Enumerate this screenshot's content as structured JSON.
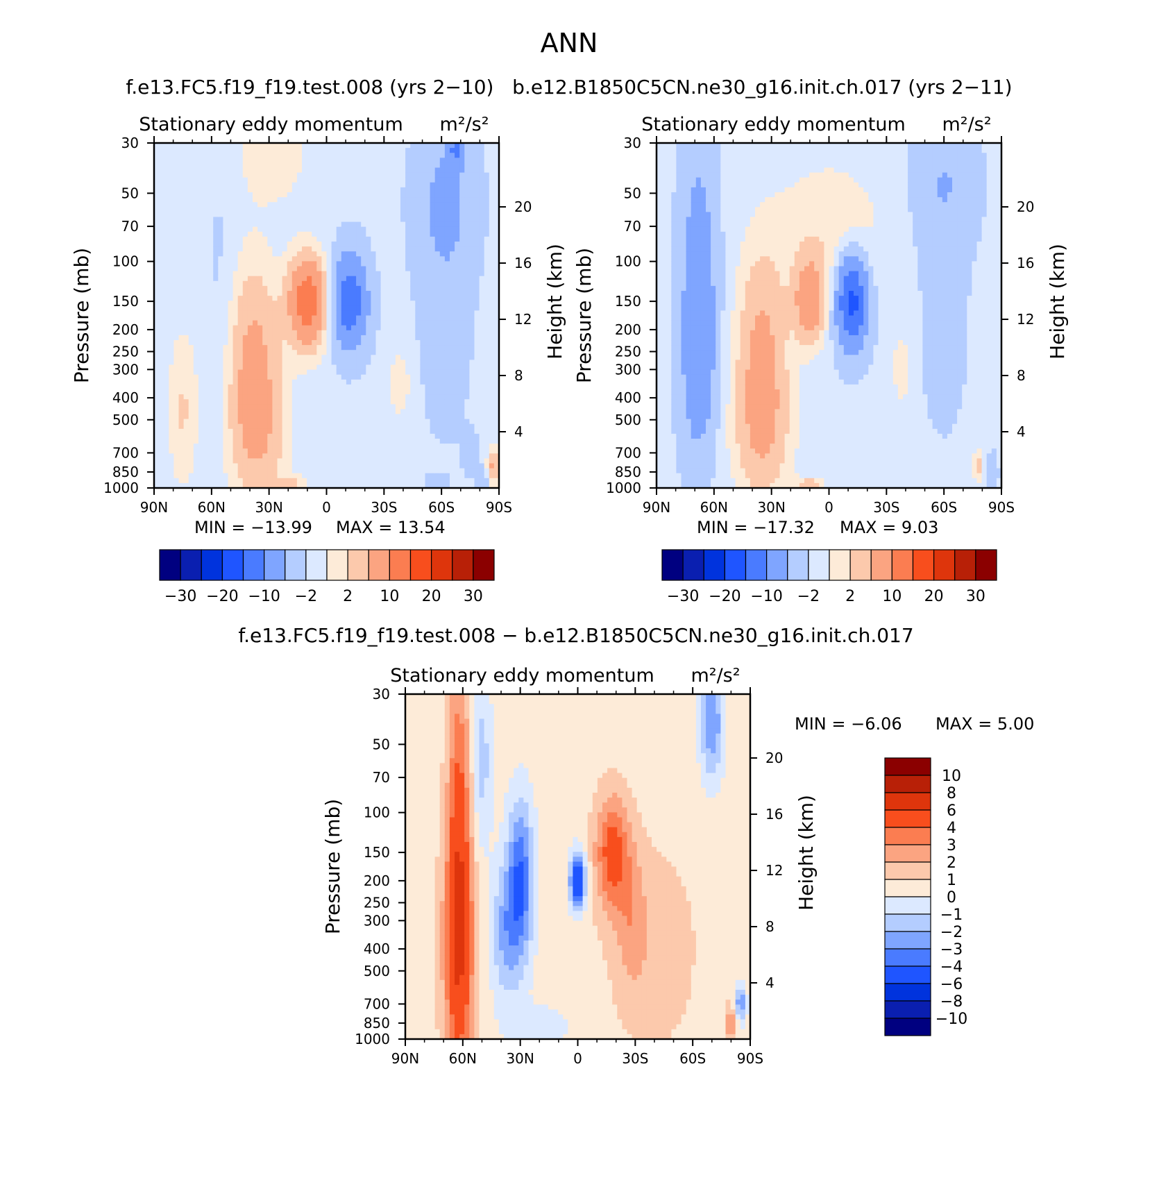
{
  "header": {
    "title": "ANN",
    "subtitle": "f.e13.FC5.f19_f19.test.008 (yrs 2−10)   b.e12.B1850C5CN.ne30_g16.init.ch.017 (yrs 2−11)",
    "diff_title": "f.e13.FC5.f19_f19.test.008 − b.e12.B1850C5CN.ne30_g16.init.ch.017"
  },
  "colors": {
    "levels_main": [
      "#000080",
      "#0a1fb0",
      "#0033dd",
      "#1f55ff",
      "#4a7bff",
      "#7fa5ff",
      "#b4cdff",
      "#dce9ff",
      "#fdebd8",
      "#fcc9ac",
      "#fba481",
      "#fb7d51",
      "#f84e1d",
      "#de350c",
      "#b82007",
      "#8b0000"
    ],
    "levels_diff": [
      "#000080",
      "#0a1fb0",
      "#0033dd",
      "#1f55ff",
      "#4a7bff",
      "#7fa5ff",
      "#b4cdff",
      "#dce9ff",
      "#fdebd8",
      "#fcc9ac",
      "#fba481",
      "#fb7d51",
      "#f84e1d",
      "#de350c",
      "#b82007",
      "#8b0000"
    ]
  },
  "chart_data": [
    {
      "type": "heatmap",
      "panel": "left",
      "title": "Stationary eddy momentum",
      "units": "m²/s²",
      "xlabel": "",
      "ylabel": "Pressure (mb)",
      "y2label": "Height (km)",
      "x_ticks": [
        "90N",
        "60N",
        "30N",
        "0",
        "30S",
        "60S",
        "90S"
      ],
      "x_values": [
        90,
        60,
        30,
        0,
        -30,
        -60,
        -90
      ],
      "xlim": [
        90,
        -90
      ],
      "y_ticks": [
        30,
        50,
        70,
        100,
        150,
        200,
        250,
        300,
        400,
        500,
        700,
        850,
        1000
      ],
      "ylim": [
        30,
        1000
      ],
      "y_scale": "log",
      "y2_ticks": [
        20,
        16,
        12,
        8,
        4
      ],
      "min_label": "MIN = −13.99",
      "max_label": "MAX =   13.54",
      "min": -13.99,
      "max": 13.54,
      "colorbar_labels": [
        "−30",
        "−20",
        "−10",
        "−2",
        "2",
        "10",
        "20",
        "30"
      ],
      "colorbar_levels": [
        -30,
        -25,
        -20,
        -15,
        -10,
        -5,
        -2,
        0,
        2,
        5,
        10,
        15,
        20,
        25,
        30
      ],
      "blobs": [
        {
          "lat": -62,
          "p": 55,
          "value": -6,
          "rlat": 15,
          "rlogp": 0.35
        },
        {
          "lat": -62,
          "p": 220,
          "value": -3,
          "rlat": 13,
          "rlogp": 0.45
        },
        {
          "lat": -68,
          "p": 32,
          "value": -10,
          "rlat": 4,
          "rlogp": 0.07
        },
        {
          "lat": -12,
          "p": 150,
          "value": -13.99,
          "rlat": 9,
          "rlogp": 0.2
        },
        {
          "lat": 10,
          "p": 150,
          "value": 13.54,
          "rlat": 10,
          "rlogp": 0.2
        },
        {
          "lat": -75,
          "p": 700,
          "value": -3,
          "rlat": 4,
          "rlogp": 0.1
        },
        {
          "lat": -87,
          "p": 800,
          "value": 6,
          "rlat": 3,
          "rlogp": 0.08
        },
        {
          "lat": -82,
          "p": 920,
          "value": -4,
          "rlat": 3,
          "rlogp": 0.05
        },
        {
          "lat": -58,
          "p": 950,
          "value": -3,
          "rlat": 6,
          "rlogp": 0.04
        },
        {
          "lat": 38,
          "p": 280,
          "value": 6,
          "rlat": 13,
          "rlogp": 0.45
        },
        {
          "lat": 35,
          "p": 600,
          "value": 2.5,
          "rlat": 16,
          "rlogp": 0.3
        },
        {
          "lat": 55,
          "p": 130,
          "value": -2.5,
          "rlat": 8,
          "rlogp": 0.55
        },
        {
          "lat": 28,
          "p": 35,
          "value": 1.5,
          "rlat": 18,
          "rlogp": 0.2
        },
        {
          "lat": -38,
          "p": 350,
          "value": 1.5,
          "rlat": 6,
          "rlogp": 0.15
        },
        {
          "lat": -12,
          "p": 700,
          "value": -1.5,
          "rlat": 7,
          "rlogp": 0.2
        },
        {
          "lat": 10,
          "p": 900,
          "value": -1,
          "rlat": 8,
          "rlogp": 0.06
        },
        {
          "lat": 20,
          "p": 960,
          "value": 3,
          "rlat": 8,
          "rlogp": 0.03
        },
        {
          "lat": 75,
          "p": 450,
          "value": 2.2,
          "rlat": 8,
          "rlogp": 0.35
        }
      ],
      "background": -1.5
    },
    {
      "type": "heatmap",
      "panel": "right",
      "title": "Stationary eddy momentum",
      "units": "m²/s²",
      "xlabel": "",
      "ylabel": "Pressure (mb)",
      "y2label": "Height (km)",
      "x_ticks": [
        "90N",
        "60N",
        "30N",
        "0",
        "30S",
        "60S",
        "90S"
      ],
      "x_values": [
        90,
        60,
        30,
        0,
        -30,
        -60,
        -90
      ],
      "xlim": [
        90,
        -90
      ],
      "y_ticks": [
        30,
        50,
        70,
        100,
        150,
        200,
        250,
        300,
        400,
        500,
        700,
        850,
        1000
      ],
      "ylim": [
        30,
        1000
      ],
      "y_scale": "log",
      "y2_ticks": [
        20,
        16,
        12,
        8,
        4
      ],
      "min_label": "MIN = −17.32",
      "max_label": "MAX =     9.03",
      "min": -17.32,
      "max": 9.03,
      "colorbar_labels": [
        "−30",
        "−20",
        "−10",
        "−2",
        "2",
        "10",
        "20",
        "30"
      ],
      "colorbar_levels": [
        -30,
        -25,
        -20,
        -15,
        -10,
        -5,
        -2,
        0,
        2,
        5,
        10,
        15,
        20,
        25,
        30
      ],
      "blobs": [
        {
          "lat": 68,
          "p": 110,
          "value": -7,
          "rlat": 9,
          "rlogp": 0.6
        },
        {
          "lat": 68,
          "p": 300,
          "value": -6,
          "rlat": 9,
          "rlogp": 0.4
        },
        {
          "lat": -12,
          "p": 150,
          "value": -17.32,
          "rlat": 8,
          "rlogp": 0.2
        },
        {
          "lat": 10,
          "p": 150,
          "value": 9.03,
          "rlat": 8,
          "rlogp": 0.18
        },
        {
          "lat": -60,
          "p": 45,
          "value": -5,
          "rlat": 16,
          "rlogp": 0.3
        },
        {
          "lat": -60,
          "p": 200,
          "value": -3,
          "rlat": 12,
          "rlogp": 0.45
        },
        {
          "lat": 35,
          "p": 260,
          "value": 6,
          "rlat": 13,
          "rlogp": 0.45
        },
        {
          "lat": 35,
          "p": 600,
          "value": 2.5,
          "rlat": 16,
          "rlogp": 0.3
        },
        {
          "lat": -12,
          "p": 700,
          "value": -1.5,
          "rlat": 7,
          "rlogp": 0.2
        },
        {
          "lat": -85,
          "p": 850,
          "value": -4,
          "rlat": 3,
          "rlogp": 0.08
        },
        {
          "lat": -78,
          "p": 800,
          "value": 3,
          "rlat": 3,
          "rlogp": 0.08
        },
        {
          "lat": 0,
          "p": 70,
          "value": 1.5,
          "rlat": 30,
          "rlogp": 0.3
        },
        {
          "lat": -38,
          "p": 300,
          "value": 1.5,
          "rlat": 5,
          "rlogp": 0.15
        },
        {
          "lat": 10,
          "p": 960,
          "value": 3,
          "rlat": 8,
          "rlogp": 0.03
        }
      ],
      "background": -1.5
    },
    {
      "type": "heatmap",
      "panel": "difference",
      "title": "Stationary eddy momentum",
      "units": "m²/s²",
      "xlabel": "",
      "ylabel": "Pressure (mb)",
      "y2label": "Height (km)",
      "x_ticks": [
        "90N",
        "60N",
        "30N",
        "0",
        "30S",
        "60S",
        "90S"
      ],
      "x_values": [
        90,
        60,
        30,
        0,
        -30,
        -60,
        -90
      ],
      "xlim": [
        90,
        -90
      ],
      "y_ticks": [
        30,
        50,
        70,
        100,
        150,
        200,
        250,
        300,
        400,
        500,
        700,
        850,
        1000
      ],
      "ylim": [
        30,
        1000
      ],
      "y_scale": "log",
      "y2_ticks": [
        20,
        16,
        12,
        8,
        4
      ],
      "min_label": "MIN =    −6.06",
      "max_label": "MAX =     5.00",
      "min": -6.06,
      "max": 5.0,
      "colorbar_labels": [
        "10",
        "8",
        "6",
        "4",
        "3",
        "2",
        "1",
        "0",
        "−1",
        "−2",
        "−3",
        "−4",
        "−6",
        "−8",
        "−10"
      ],
      "colorbar_levels": [
        -10,
        -8,
        -6,
        -4,
        -3,
        -2,
        -1,
        0,
        1,
        2,
        3,
        4,
        6,
        8,
        10
      ],
      "blobs": [
        {
          "lat": 62,
          "p": 180,
          "value": 5.0,
          "rlat": 6,
          "rlogp": 0.9
        },
        {
          "lat": 62,
          "p": 400,
          "value": 3,
          "rlat": 10,
          "rlogp": 0.5
        },
        {
          "lat": 30,
          "p": 200,
          "value": -4,
          "rlat": 7,
          "rlogp": 0.35
        },
        {
          "lat": 38,
          "p": 350,
          "value": -2,
          "rlat": 8,
          "rlogp": 0.3
        },
        {
          "lat": 0,
          "p": 200,
          "value": -6.06,
          "rlat": 4,
          "rlogp": 0.12
        },
        {
          "lat": -18,
          "p": 150,
          "value": 4.5,
          "rlat": 9,
          "rlogp": 0.25
        },
        {
          "lat": -28,
          "p": 300,
          "value": 2,
          "rlat": 8,
          "rlogp": 0.3
        },
        {
          "lat": -70,
          "p": 40,
          "value": -3,
          "rlat": 6,
          "rlogp": 0.25
        },
        {
          "lat": -85,
          "p": 700,
          "value": -3,
          "rlat": 3,
          "rlogp": 0.08
        },
        {
          "lat": -80,
          "p": 850,
          "value": 3,
          "rlat": 3,
          "rlogp": 0.08
        },
        {
          "lat": 50,
          "p": 60,
          "value": -1.5,
          "rlat": 5,
          "rlogp": 0.4
        },
        {
          "lat": -40,
          "p": 400,
          "value": 1.5,
          "rlat": 25,
          "rlogp": 0.5
        },
        {
          "lat": 20,
          "p": 900,
          "value": -0.8,
          "rlat": 15,
          "rlogp": 0.1
        }
      ],
      "background": 0.5
    }
  ]
}
